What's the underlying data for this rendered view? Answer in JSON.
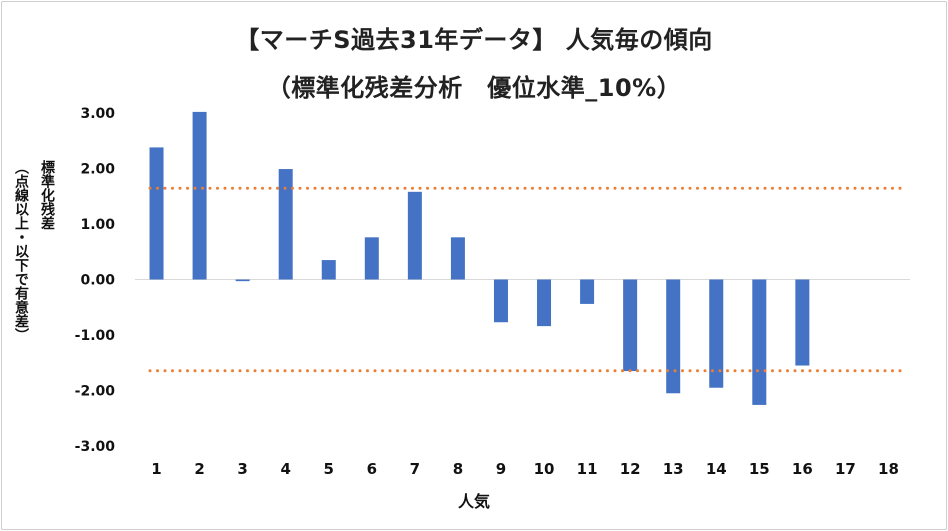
{
  "chart_data": {
    "type": "bar",
    "title": "【マーチS過去31年データ】 人気毎の傾向",
    "subtitle": "（標準化残差分析　優位水準_10%）",
    "ylabel": "標準化残差",
    "ylabel_note": "（点線以上・以下で有意差）",
    "xlabel": "人気",
    "categories": [
      "1",
      "2",
      "3",
      "4",
      "5",
      "6",
      "7",
      "8",
      "9",
      "10",
      "11",
      "12",
      "13",
      "14",
      "15",
      "16",
      "17",
      "18"
    ],
    "values": [
      2.38,
      3.02,
      -0.03,
      1.99,
      0.35,
      0.76,
      1.58,
      0.76,
      -0.77,
      -0.84,
      -0.44,
      -1.65,
      -2.05,
      -1.95,
      -2.26,
      -1.55,
      null,
      null
    ],
    "ylim": [
      -3.0,
      3.0
    ],
    "yticks": [
      "3.00",
      "2.00",
      "1.00",
      "0.00",
      "-1.00",
      "-2.00",
      "-3.00"
    ],
    "threshold_lines": [
      1.645,
      -1.645
    ],
    "bar_color": "#4472c4",
    "threshold_color": "#ed7d31",
    "grid": false,
    "legend": "none"
  }
}
